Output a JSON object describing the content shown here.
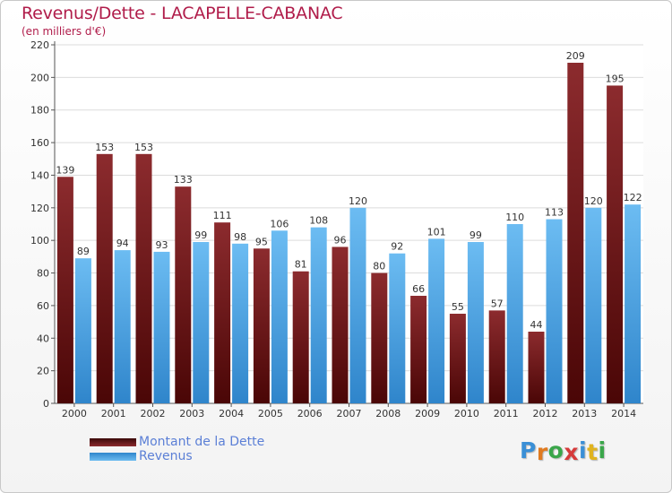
{
  "header": {
    "title": "Revenus/Dette - LACAPELLE-CABANAC",
    "subtitle": "(en milliers d'€)"
  },
  "chart_data": {
    "type": "bar",
    "title": "Revenus/Dette - LACAPELLE-CABANAC",
    "ylabel": "(en milliers d'€)",
    "xlabel": "",
    "ylim": [
      0,
      220
    ],
    "yticks": [
      0,
      20,
      40,
      60,
      80,
      100,
      120,
      140,
      160,
      180,
      200,
      220
    ],
    "grid": true,
    "categories": [
      "2000",
      "2001",
      "2002",
      "2003",
      "2004",
      "2005",
      "2006",
      "2007",
      "2008",
      "2009",
      "2010",
      "2011",
      "2012",
      "2013",
      "2014"
    ],
    "series": [
      {
        "name": "Montant de la Dette",
        "color": "#7a1f22",
        "values": [
          139,
          153,
          153,
          133,
          111,
          95,
          81,
          96,
          80,
          66,
          55,
          57,
          44,
          209,
          195
        ]
      },
      {
        "name": "Revenus",
        "color": "#4aa3e6",
        "values": [
          89,
          94,
          93,
          99,
          98,
          106,
          108,
          120,
          92,
          101,
          99,
          110,
          113,
          120,
          122
        ]
      }
    ]
  },
  "legend": {
    "items": [
      {
        "label": "Montant de la Dette",
        "color": "#7a1f22"
      },
      {
        "label": "Revenus",
        "color": "#4aa3e6"
      }
    ]
  },
  "logo": {
    "letters": [
      "P",
      "r",
      "o",
      "x",
      "i",
      "t",
      "i"
    ],
    "colors": [
      "#3a8fd6",
      "#e07a1f",
      "#3aa64a",
      "#d63a3a",
      "#3a8fd6",
      "#e0b31f",
      "#3aa64a"
    ]
  }
}
